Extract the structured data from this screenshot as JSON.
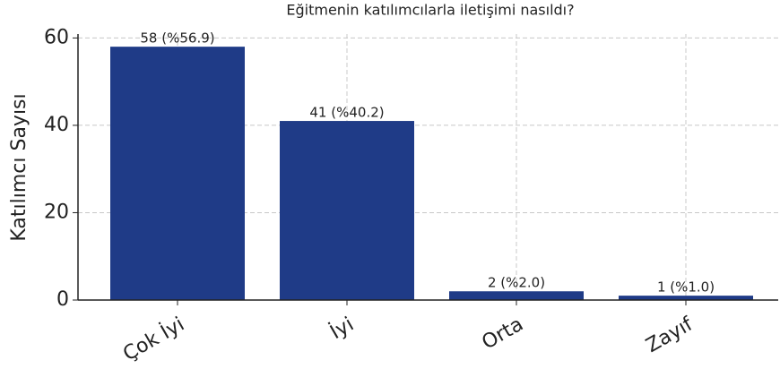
{
  "chart_data": {
    "type": "bar",
    "title": "Eğitmenin katılımcılarla iletişimi nasıldı?",
    "y_label": "Katılımcı Sayısı",
    "categories": [
      "Çok İyi",
      "İyi",
      "Orta",
      "Zayıf"
    ],
    "values": [
      58,
      41,
      2,
      1
    ],
    "value_labels": [
      "58 (%56.9)",
      "41 (%40.2)",
      "2 (%2.0)",
      "1 (%1.0)"
    ],
    "color": "#1f3b87",
    "ylim": [
      0,
      60.9
    ],
    "yticks": [
      0,
      20,
      40,
      60
    ],
    "grid": true
  }
}
